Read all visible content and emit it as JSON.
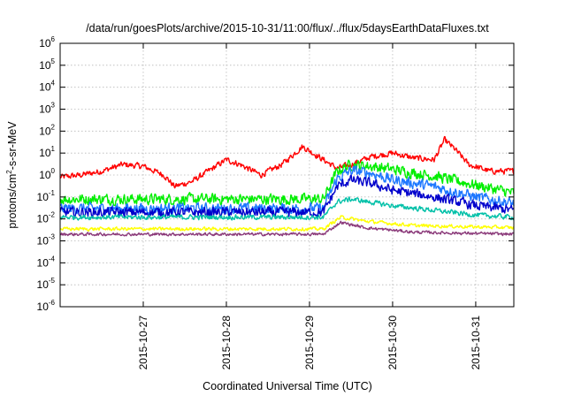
{
  "chart_data": {
    "type": "line",
    "title": "/data/run/goesPlots/archive/2015-10-31/11:00/flux/../flux/5daysEarthDataFluxes.txt",
    "xlabel": "Coordinated Universal Time (UTC)",
    "ylabel": "protons/cm²-s-sr-MeV",
    "ylabel_parts": {
      "pre": "protons/cm",
      "sup": "2",
      "post": "-s-sr-MeV"
    },
    "yscale": "log",
    "ylim": [
      1e-06,
      1000000.0
    ],
    "xlim": [
      "2015-10-26T00:00",
      "2015-10-31T11:00"
    ],
    "grid": true,
    "yticks": [
      {
        "base": "10",
        "exp": "-6",
        "value": 1e-06
      },
      {
        "base": "10",
        "exp": "-5",
        "value": 1e-05
      },
      {
        "base": "10",
        "exp": "-4",
        "value": 0.0001
      },
      {
        "base": "10",
        "exp": "-3",
        "value": 0.001
      },
      {
        "base": "10",
        "exp": "-2",
        "value": 0.01
      },
      {
        "base": "10",
        "exp": "-1",
        "value": 0.1
      },
      {
        "base": "10",
        "exp": "0",
        "value": 1.0
      },
      {
        "base": "10",
        "exp": "1",
        "value": 10.0
      },
      {
        "base": "10",
        "exp": "2",
        "value": 100.0
      },
      {
        "base": "10",
        "exp": "3",
        "value": 1000.0
      },
      {
        "base": "10",
        "exp": "4",
        "value": 10000.0
      },
      {
        "base": "10",
        "exp": "5",
        "value": 100000.0
      },
      {
        "base": "10",
        "exp": "6",
        "value": 1000000.0
      }
    ],
    "xticks": [
      {
        "label": "2015-10-27",
        "value": "2015-10-27T00:00"
      },
      {
        "label": "2015-10-28",
        "value": "2015-10-28T00:00"
      },
      {
        "label": "2015-10-29",
        "value": "2015-10-29T00:00"
      },
      {
        "label": "2015-10-30",
        "value": "2015-10-30T00:00"
      },
      {
        "label": "2015-10-31",
        "value": "2015-10-31T00:00"
      }
    ],
    "series": [
      {
        "color": "#ff0000",
        "noise": 0.12,
        "points": [
          [
            "2015-10-26T00:00",
            0.8
          ],
          [
            "2015-10-26T06:00",
            1.0
          ],
          [
            "2015-10-26T12:00",
            1.5
          ],
          [
            "2015-10-26T18:00",
            3.0
          ],
          [
            "2015-10-27T00:00",
            2.5
          ],
          [
            "2015-10-27T06:00",
            1.0
          ],
          [
            "2015-10-27T09:00",
            0.3
          ],
          [
            "2015-10-27T14:00",
            0.5
          ],
          [
            "2015-10-27T20:00",
            2.0
          ],
          [
            "2015-10-28T00:00",
            5.0
          ],
          [
            "2015-10-28T04:00",
            3.0
          ],
          [
            "2015-10-28T10:00",
            1.0
          ],
          [
            "2015-10-28T16:00",
            3.0
          ],
          [
            "2015-10-28T22:00",
            20.0
          ],
          [
            "2015-10-29T04:00",
            5.0
          ],
          [
            "2015-10-29T08:00",
            2.0
          ],
          [
            "2015-10-29T12:00",
            3.0
          ],
          [
            "2015-10-29T18:00",
            7.0
          ],
          [
            "2015-10-30T00:00",
            10.0
          ],
          [
            "2015-10-30T06:00",
            6.0
          ],
          [
            "2015-10-30T12:00",
            5.0
          ],
          [
            "2015-10-30T15:00",
            40.0
          ],
          [
            "2015-10-30T18:00",
            15.0
          ],
          [
            "2015-10-30T22:00",
            3.0
          ],
          [
            "2015-10-31T04:00",
            1.5
          ],
          [
            "2015-10-31T11:00",
            1.5
          ]
        ]
      },
      {
        "color": "#00ee00",
        "noise": 0.22,
        "points": [
          [
            "2015-10-26T00:00",
            0.08
          ],
          [
            "2015-10-28T12:00",
            0.08
          ],
          [
            "2015-10-29T04:00",
            0.08
          ],
          [
            "2015-10-29T08:00",
            1.5
          ],
          [
            "2015-10-29T12:00",
            3.0
          ],
          [
            "2015-10-29T18:00",
            2.5
          ],
          [
            "2015-10-30T00:00",
            1.8
          ],
          [
            "2015-10-30T12:00",
            0.9
          ],
          [
            "2015-10-31T00:00",
            0.35
          ],
          [
            "2015-10-31T11:00",
            0.15
          ]
        ]
      },
      {
        "color": "#1e78ff",
        "noise": 0.22,
        "points": [
          [
            "2015-10-26T00:00",
            0.03
          ],
          [
            "2015-10-28T12:00",
            0.03
          ],
          [
            "2015-10-29T04:00",
            0.03
          ],
          [
            "2015-10-29T08:00",
            0.7
          ],
          [
            "2015-10-29T12:00",
            1.6
          ],
          [
            "2015-10-29T18:00",
            1.2
          ],
          [
            "2015-10-30T00:00",
            0.6
          ],
          [
            "2015-10-30T12:00",
            0.3
          ],
          [
            "2015-10-31T00:00",
            0.1
          ],
          [
            "2015-10-31T11:00",
            0.05
          ]
        ]
      },
      {
        "color": "#0000cc",
        "noise": 0.2,
        "points": [
          [
            "2015-10-26T00:00",
            0.02
          ],
          [
            "2015-10-28T12:00",
            0.02
          ],
          [
            "2015-10-29T04:00",
            0.02
          ],
          [
            "2015-10-29T08:00",
            0.3
          ],
          [
            "2015-10-29T12:00",
            0.6
          ],
          [
            "2015-10-29T18:00",
            0.4
          ],
          [
            "2015-10-30T00:00",
            0.2
          ],
          [
            "2015-10-30T12:00",
            0.1
          ],
          [
            "2015-10-31T00:00",
            0.04
          ],
          [
            "2015-10-31T11:00",
            0.025
          ]
        ]
      },
      {
        "color": "#00c0a8",
        "noise": 0.1,
        "points": [
          [
            "2015-10-26T00:00",
            0.012
          ],
          [
            "2015-10-28T12:00",
            0.012
          ],
          [
            "2015-10-29T04:00",
            0.012
          ],
          [
            "2015-10-29T08:00",
            0.06
          ],
          [
            "2015-10-29T12:00",
            0.08
          ],
          [
            "2015-10-30T00:00",
            0.04
          ],
          [
            "2015-10-31T00:00",
            0.015
          ],
          [
            "2015-10-31T11:00",
            0.012
          ]
        ]
      },
      {
        "color": "#ffff00",
        "noise": 0.07,
        "points": [
          [
            "2015-10-26T00:00",
            0.0035
          ],
          [
            "2015-10-28T12:00",
            0.0035
          ],
          [
            "2015-10-29T04:00",
            0.0035
          ],
          [
            "2015-10-29T09:00",
            0.012
          ],
          [
            "2015-10-29T16:00",
            0.008
          ],
          [
            "2015-10-30T06:00",
            0.005
          ],
          [
            "2015-10-31T11:00",
            0.004
          ]
        ]
      },
      {
        "color": "#8b3a7a",
        "noise": 0.06,
        "points": [
          [
            "2015-10-26T00:00",
            0.002
          ],
          [
            "2015-10-28T12:00",
            0.002
          ],
          [
            "2015-10-29T04:00",
            0.002
          ],
          [
            "2015-10-29T09:00",
            0.007
          ],
          [
            "2015-10-29T16:00",
            0.004
          ],
          [
            "2015-10-30T06:00",
            0.0025
          ],
          [
            "2015-10-31T11:00",
            0.002
          ]
        ]
      }
    ]
  }
}
